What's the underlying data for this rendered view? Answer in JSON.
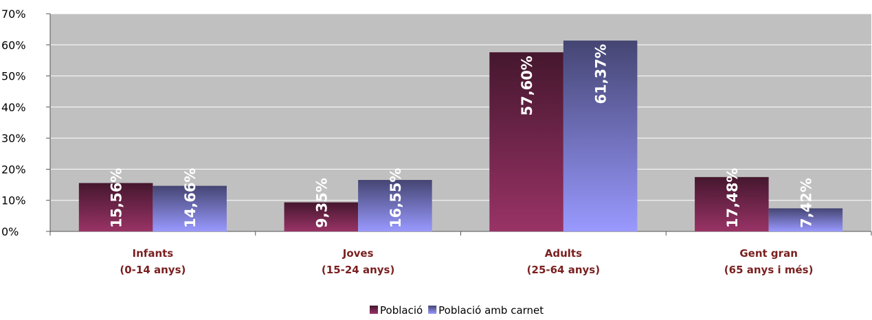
{
  "chart_data": {
    "type": "bar",
    "categories": [
      [
        "Infants",
        "(0-14 anys)"
      ],
      [
        "Joves",
        "(15-24 anys)"
      ],
      [
        "Adults",
        "(25-64 anys)"
      ],
      [
        "Gent gran",
        "(65 anys i més)"
      ]
    ],
    "series": [
      {
        "name": "Població",
        "color": "#993366",
        "values": [
          15.56,
          9.35,
          57.6,
          17.48
        ],
        "value_labels": [
          "15,56%",
          "9,35%",
          "57,60%",
          "17,48%"
        ]
      },
      {
        "name": "Població amb carnet",
        "color": "#9999ff",
        "values": [
          14.66,
          16.55,
          61.37,
          7.42
        ],
        "value_labels": [
          "14,66%",
          "16,55%",
          "61,37%",
          "7,42%"
        ]
      }
    ],
    "ylim": [
      0,
      70
    ],
    "yticks": [
      {
        "value": 0,
        "label": "0%"
      },
      {
        "value": 10,
        "label": "10%"
      },
      {
        "value": 20,
        "label": "20%"
      },
      {
        "value": 30,
        "label": "30%"
      },
      {
        "value": 40,
        "label": "40%"
      },
      {
        "value": 50,
        "label": "50%"
      },
      {
        "value": 60,
        "label": "60%"
      },
      {
        "value": 70,
        "label": "70%"
      }
    ],
    "grid": true,
    "legend": "bottom"
  }
}
